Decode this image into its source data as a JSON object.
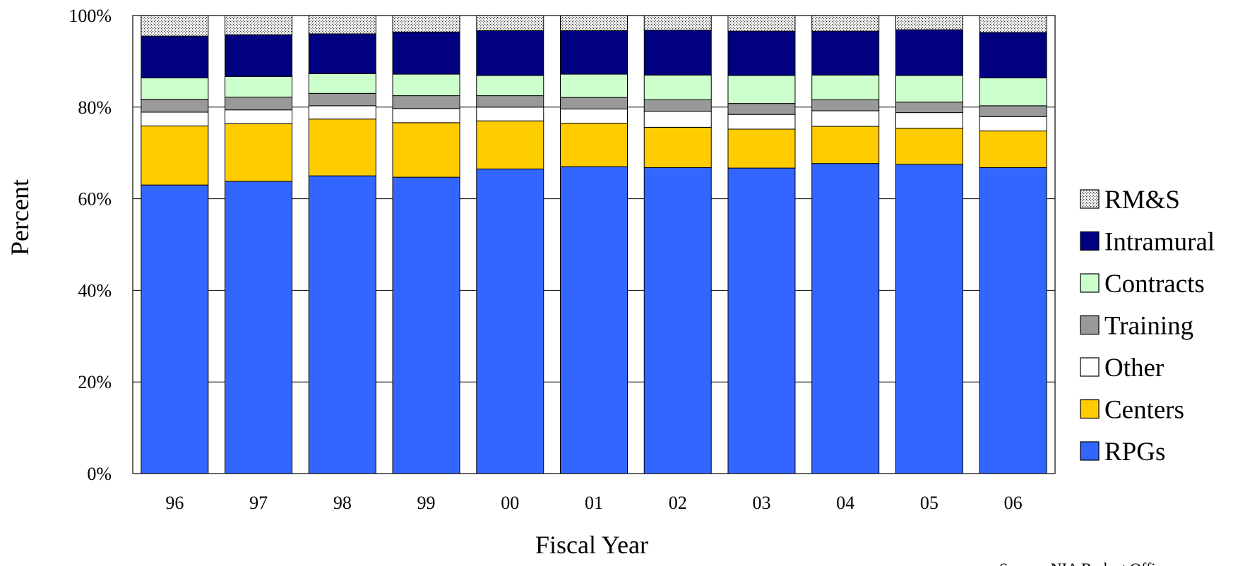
{
  "chart_data": {
    "type": "bar",
    "stacked": true,
    "normalized": true,
    "xlabel": "Fiscal Year",
    "ylabel": "Percent",
    "ylim": [
      0,
      100
    ],
    "yticks": [
      "0%",
      "20%",
      "40%",
      "60%",
      "80%",
      "100%"
    ],
    "grid": true,
    "legend_position": "right",
    "categories": [
      "96",
      "97",
      "98",
      "99",
      "00",
      "01",
      "02",
      "03",
      "04",
      "05",
      "06"
    ],
    "series": [
      {
        "name": "RPGs",
        "color": "#3366FF",
        "values": [
          63.0,
          63.8,
          65.0,
          64.7,
          66.5,
          67.0,
          66.8,
          66.7,
          67.7,
          67.5,
          66.8
        ]
      },
      {
        "name": "Centers",
        "color": "#FFCC00",
        "values": [
          12.9,
          12.6,
          12.4,
          11.9,
          10.5,
          9.5,
          8.8,
          8.5,
          8.1,
          7.9,
          8.0
        ]
      },
      {
        "name": "Other",
        "color": "#FFFFFF",
        "values": [
          3.0,
          3.0,
          2.9,
          3.1,
          3.0,
          3.1,
          3.5,
          3.2,
          3.4,
          3.4,
          3.1
        ]
      },
      {
        "name": "Training",
        "color": "#999999",
        "values": [
          2.8,
          2.8,
          2.7,
          2.8,
          2.5,
          2.5,
          2.5,
          2.4,
          2.4,
          2.3,
          2.4
        ]
      },
      {
        "name": "Contracts",
        "color": "#CCFFCC",
        "values": [
          4.7,
          4.5,
          4.3,
          4.7,
          4.4,
          5.1,
          5.4,
          6.1,
          5.4,
          5.8,
          6.1
        ]
      },
      {
        "name": "Intramural",
        "color": "#000080",
        "values": [
          9.1,
          9.1,
          8.7,
          9.2,
          9.8,
          9.5,
          9.8,
          9.7,
          9.6,
          10.0,
          9.9
        ]
      },
      {
        "name": "RM&S",
        "color": "#DDDDDD",
        "pattern": "dotted",
        "values": [
          4.5,
          4.2,
          4.0,
          3.6,
          3.3,
          3.3,
          3.2,
          3.4,
          3.4,
          3.1,
          3.7
        ]
      }
    ],
    "legend_order": [
      "RM&S",
      "Intramural",
      "Contracts",
      "Training",
      "Other",
      "Centers",
      "RPGs"
    ],
    "source_note": "Source: NIA Budget Office"
  }
}
